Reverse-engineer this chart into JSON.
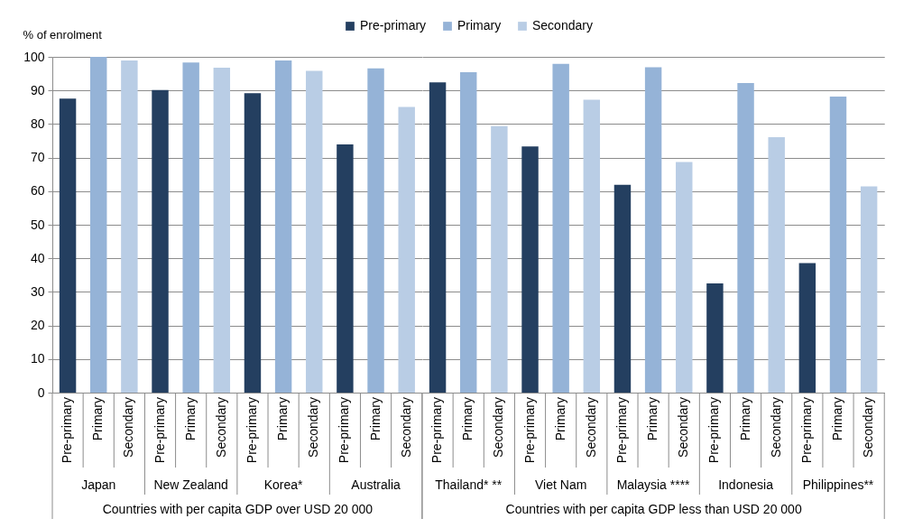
{
  "chart_data": [
    {
      "type": "bar",
      "ylabel": "% of enrolment",
      "xlabel": "Countries with per capita GDP over USD 20 000",
      "categories": [
        "Japan",
        "New Zealand",
        "Korea*",
        "Australia"
      ],
      "series": [
        {
          "name": "Pre-primary",
          "color": "#243f60",
          "values": [
            87.6,
            90.1,
            89.2,
            73.9
          ]
        },
        {
          "name": "Primary",
          "color": "#95b3d7",
          "values": [
            100,
            98.3,
            98.9,
            96.6
          ]
        },
        {
          "name": "Secondary",
          "color": "#b9cde5",
          "values": [
            98.9,
            96.8,
            95.8,
            85.1
          ]
        }
      ],
      "ylim": [
        0,
        100
      ],
      "yticks": [
        0,
        10,
        20,
        30,
        40,
        50,
        60,
        70,
        80,
        90,
        100
      ],
      "grid": "y",
      "legend": "top"
    },
    {
      "type": "bar",
      "xlabel": "Countries with per capita  GDP less than USD 20 000",
      "categories": [
        "Thailand* **",
        "Viet Nam",
        "Malaysia ****",
        "Indonesia",
        "Philippines**"
      ],
      "series": [
        {
          "name": "Pre-primary",
          "color": "#243f60",
          "values": [
            92.4,
            73.3,
            61.9,
            32.5,
            38.6
          ]
        },
        {
          "name": "Primary",
          "color": "#95b3d7",
          "values": [
            95.4,
            97.9,
            96.9,
            92.2,
            88.2
          ]
        },
        {
          "name": "Secondary",
          "color": "#b9cde5",
          "values": [
            79.4,
            87.2,
            68.7,
            76.1,
            61.4
          ]
        }
      ],
      "ylim": [
        0,
        100
      ],
      "yticks": [
        0,
        10,
        20,
        30,
        40,
        50,
        60,
        70,
        80,
        90,
        100
      ],
      "grid": "y",
      "tick_labels": "x"
    }
  ]
}
